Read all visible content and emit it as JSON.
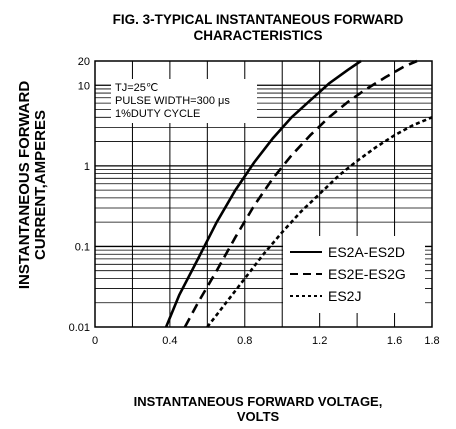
{
  "title_line1": "FIG. 3-TYPICAL INSTANTANEOUS FORWARD",
  "title_line2": "CHARACTERISTICS",
  "xlabel_line1": "INSTANTANEOUS FORWARD VOLTAGE,",
  "xlabel_line2": "VOLTS",
  "ylabel_line1": "INSTANTANEOUS FORWARD",
  "ylabel_line2": "CURRENT,AMPERES",
  "conditions": [
    "TJ=25℃",
    "PULSE WIDTH=300 μs",
    "1%DUTY CYCLE"
  ],
  "chart_data": {
    "type": "line",
    "title": "FIG. 3-TYPICAL INSTANTANEOUS FORWARD CHARACTERISTICS",
    "xlabel": "INSTANTANEOUS FORWARD VOLTAGE, VOLTS",
    "ylabel": "INSTANTANEOUS FORWARD CURRENT,AMPERES",
    "xlim": [
      0,
      1.8
    ],
    "ylim": [
      0.01,
      20
    ],
    "yscale": "log",
    "x_ticks": [
      "0",
      "0.4",
      "0.8",
      "1.2",
      "1.6",
      "1.8"
    ],
    "y_ticks": [
      "0.01",
      "0.1",
      "1",
      "10",
      "20"
    ],
    "grid": true,
    "legend_position": "bottom-right",
    "series": [
      {
        "name": "ES2A-ES2D",
        "style": "solid",
        "x": [
          0.38,
          0.45,
          0.55,
          0.65,
          0.75,
          0.85,
          0.95,
          1.05,
          1.15,
          1.25,
          1.35,
          1.42
        ],
        "y": [
          0.01,
          0.025,
          0.07,
          0.2,
          0.5,
          1.1,
          2.2,
          4.0,
          6.5,
          10.5,
          15.5,
          20
        ]
      },
      {
        "name": "ES2E-ES2G",
        "style": "dashed",
        "x": [
          0.48,
          0.55,
          0.65,
          0.75,
          0.85,
          0.95,
          1.05,
          1.15,
          1.25,
          1.35,
          1.45,
          1.55,
          1.65,
          1.72
        ],
        "y": [
          0.01,
          0.02,
          0.05,
          0.13,
          0.32,
          0.7,
          1.35,
          2.4,
          4.0,
          6.2,
          9.0,
          12.5,
          17,
          20
        ]
      },
      {
        "name": "ES2J",
        "style": "dotted",
        "x": [
          0.6,
          0.7,
          0.8,
          0.9,
          1.0,
          1.1,
          1.2,
          1.3,
          1.4,
          1.5,
          1.6,
          1.7,
          1.8
        ],
        "y": [
          0.01,
          0.02,
          0.04,
          0.08,
          0.15,
          0.27,
          0.45,
          0.75,
          1.15,
          1.7,
          2.4,
          3.2,
          4.0
        ]
      }
    ]
  }
}
